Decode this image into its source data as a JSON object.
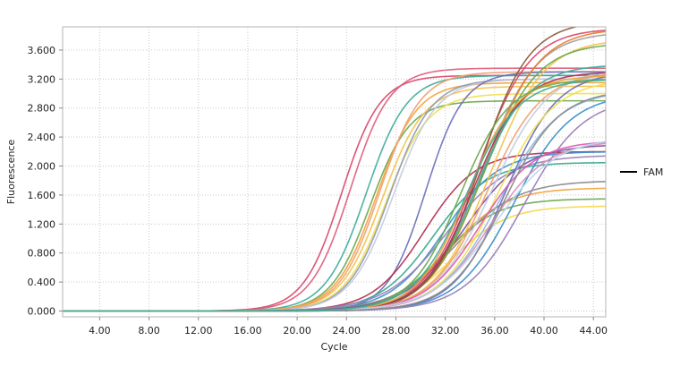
{
  "chart_data": {
    "type": "line",
    "title": "",
    "xlabel": "Cycle",
    "ylabel": "Fluorescence",
    "xlim": [
      1,
      45
    ],
    "ylim": [
      -0.08,
      3.92
    ],
    "grid": true,
    "x_ticks": [
      4,
      8,
      12,
      16,
      20,
      24,
      28,
      32,
      36,
      40,
      44
    ],
    "x_tick_labels": [
      "4.00",
      "8.00",
      "12.00",
      "16.00",
      "20.00",
      "24.00",
      "28.00",
      "32.00",
      "36.00",
      "40.00",
      "44.00"
    ],
    "y_ticks": [
      0,
      0.4,
      0.8,
      1.2,
      1.6,
      2.0,
      2.4,
      2.8,
      3.2,
      3.6
    ],
    "y_tick_labels": [
      "0.000",
      "0.400",
      "0.800",
      "1.200",
      "1.600",
      "2.000",
      "2.400",
      "2.800",
      "3.200",
      "3.600"
    ],
    "legend": {
      "position": "right",
      "entries": [
        {
          "label": "FAM",
          "color": "#000000"
        }
      ]
    },
    "series_model": "sigmoid: y = plateau / (1 + exp(-(x - midpoint) / slope))",
    "series": [
      {
        "color": "#d9486a",
        "plateau": 3.25,
        "midpoint": 23.6,
        "slope": 1.55
      },
      {
        "color": "#e05a7a",
        "plateau": 3.35,
        "midpoint": 24.3,
        "slope": 1.6
      },
      {
        "color": "#3fae9a",
        "plateau": 3.25,
        "midpoint": 25.6,
        "slope": 1.65
      },
      {
        "color": "#6aa84f",
        "plateau": 2.9,
        "midpoint": 25.9,
        "slope": 1.6
      },
      {
        "color": "#f2a33a",
        "plateau": 3.15,
        "midpoint": 26.4,
        "slope": 1.65
      },
      {
        "color": "#f5c24a",
        "plateau": 3.1,
        "midpoint": 26.9,
        "slope": 1.7
      },
      {
        "color": "#f0e050",
        "plateau": 3.0,
        "midpoint": 27.2,
        "slope": 1.7
      },
      {
        "color": "#8e9ab8",
        "plateau": 3.2,
        "midpoint": 27.5,
        "slope": 1.7
      },
      {
        "color": "#f0a070",
        "plateau": 3.3,
        "midpoint": 26.7,
        "slope": 1.65
      },
      {
        "color": "#c3cbe0",
        "plateau": 3.2,
        "midpoint": 27.8,
        "slope": 1.75
      },
      {
        "color": "#6c6fb8",
        "plateau": 3.3,
        "midpoint": 30.4,
        "slope": 1.55
      },
      {
        "color": "#b03050",
        "plateau": 2.2,
        "midpoint": 30.3,
        "slope": 2.1
      },
      {
        "color": "#36a88c",
        "plateau": 2.05,
        "midpoint": 31.0,
        "slope": 2.2
      },
      {
        "color": "#3a8fcb",
        "plateau": 2.2,
        "midpoint": 31.9,
        "slope": 2.2
      },
      {
        "color": "#9b7fb8",
        "plateau": 2.15,
        "midpoint": 32.1,
        "slope": 2.5
      },
      {
        "color": "#f2a33a",
        "plateau": 1.7,
        "midpoint": 32.3,
        "slope": 2.3
      },
      {
        "color": "#6aa84f",
        "plateau": 1.55,
        "midpoint": 31.8,
        "slope": 2.2
      },
      {
        "color": "#f5d84a",
        "plateau": 1.45,
        "midpoint": 32.6,
        "slope": 2.2
      },
      {
        "color": "#8a8a8a",
        "plateau": 1.8,
        "midpoint": 32.8,
        "slope": 2.5
      },
      {
        "color": "#7a4fa0",
        "plateau": 2.3,
        "midpoint": 33.6,
        "slope": 2.4
      },
      {
        "color": "#d9486a",
        "plateau": 3.9,
        "midpoint": 34.6,
        "slope": 2.1
      },
      {
        "color": "#a0a0a0",
        "plateau": 3.85,
        "midpoint": 35.0,
        "slope": 2.2
      },
      {
        "color": "#e87d2a",
        "plateau": 3.9,
        "midpoint": 35.2,
        "slope": 2.2
      },
      {
        "color": "#f5c24a",
        "plateau": 3.75,
        "midpoint": 35.6,
        "slope": 2.2
      },
      {
        "color": "#6aa84f",
        "plateau": 3.7,
        "midpoint": 35.0,
        "slope": 2.2
      },
      {
        "color": "#3fae9a",
        "plateau": 3.4,
        "midpoint": 34.5,
        "slope": 2.1
      },
      {
        "color": "#8b5a3c",
        "plateau": 4.0,
        "midpoint": 34.8,
        "slope": 2.0
      },
      {
        "color": "#c3cbe0",
        "plateau": 3.35,
        "midpoint": 35.8,
        "slope": 2.3
      },
      {
        "color": "#8fb8e0",
        "plateau": 3.05,
        "midpoint": 36.4,
        "slope": 2.4
      },
      {
        "color": "#6c6fb8",
        "plateau": 3.3,
        "midpoint": 36.9,
        "slope": 2.1
      },
      {
        "color": "#f0e050",
        "plateau": 3.2,
        "midpoint": 36.2,
        "slope": 2.3
      },
      {
        "color": "#3a8fcb",
        "plateau": 3.0,
        "midpoint": 37.6,
        "slope": 2.3
      },
      {
        "color": "#9b7fb8",
        "plateau": 2.95,
        "midpoint": 38.4,
        "slope": 2.4
      },
      {
        "color": "#b03050",
        "plateau": 3.3,
        "midpoint": 34.2,
        "slope": 2.0
      },
      {
        "color": "#f0a070",
        "plateau": 3.3,
        "midpoint": 35.4,
        "slope": 2.2
      },
      {
        "color": "#f2a33a",
        "plateau": 3.25,
        "midpoint": 33.8,
        "slope": 2.0
      },
      {
        "color": "#d98fb8",
        "plateau": 2.35,
        "midpoint": 35.6,
        "slope": 2.3
      },
      {
        "color": "#e05ab0",
        "plateau": 2.35,
        "midpoint": 34.8,
        "slope": 2.2
      },
      {
        "color": "#b8d8f0",
        "plateau": 2.4,
        "midpoint": 36.0,
        "slope": 2.5
      },
      {
        "color": "#8a8a8a",
        "plateau": 3.05,
        "midpoint": 36.8,
        "slope": 2.2
      },
      {
        "color": "#6aa84f",
        "plateau": 3.2,
        "midpoint": 33.2,
        "slope": 2.0
      },
      {
        "color": "#3fae9a",
        "plateau": 3.2,
        "midpoint": 33.7,
        "slope": 2.1
      }
    ]
  }
}
